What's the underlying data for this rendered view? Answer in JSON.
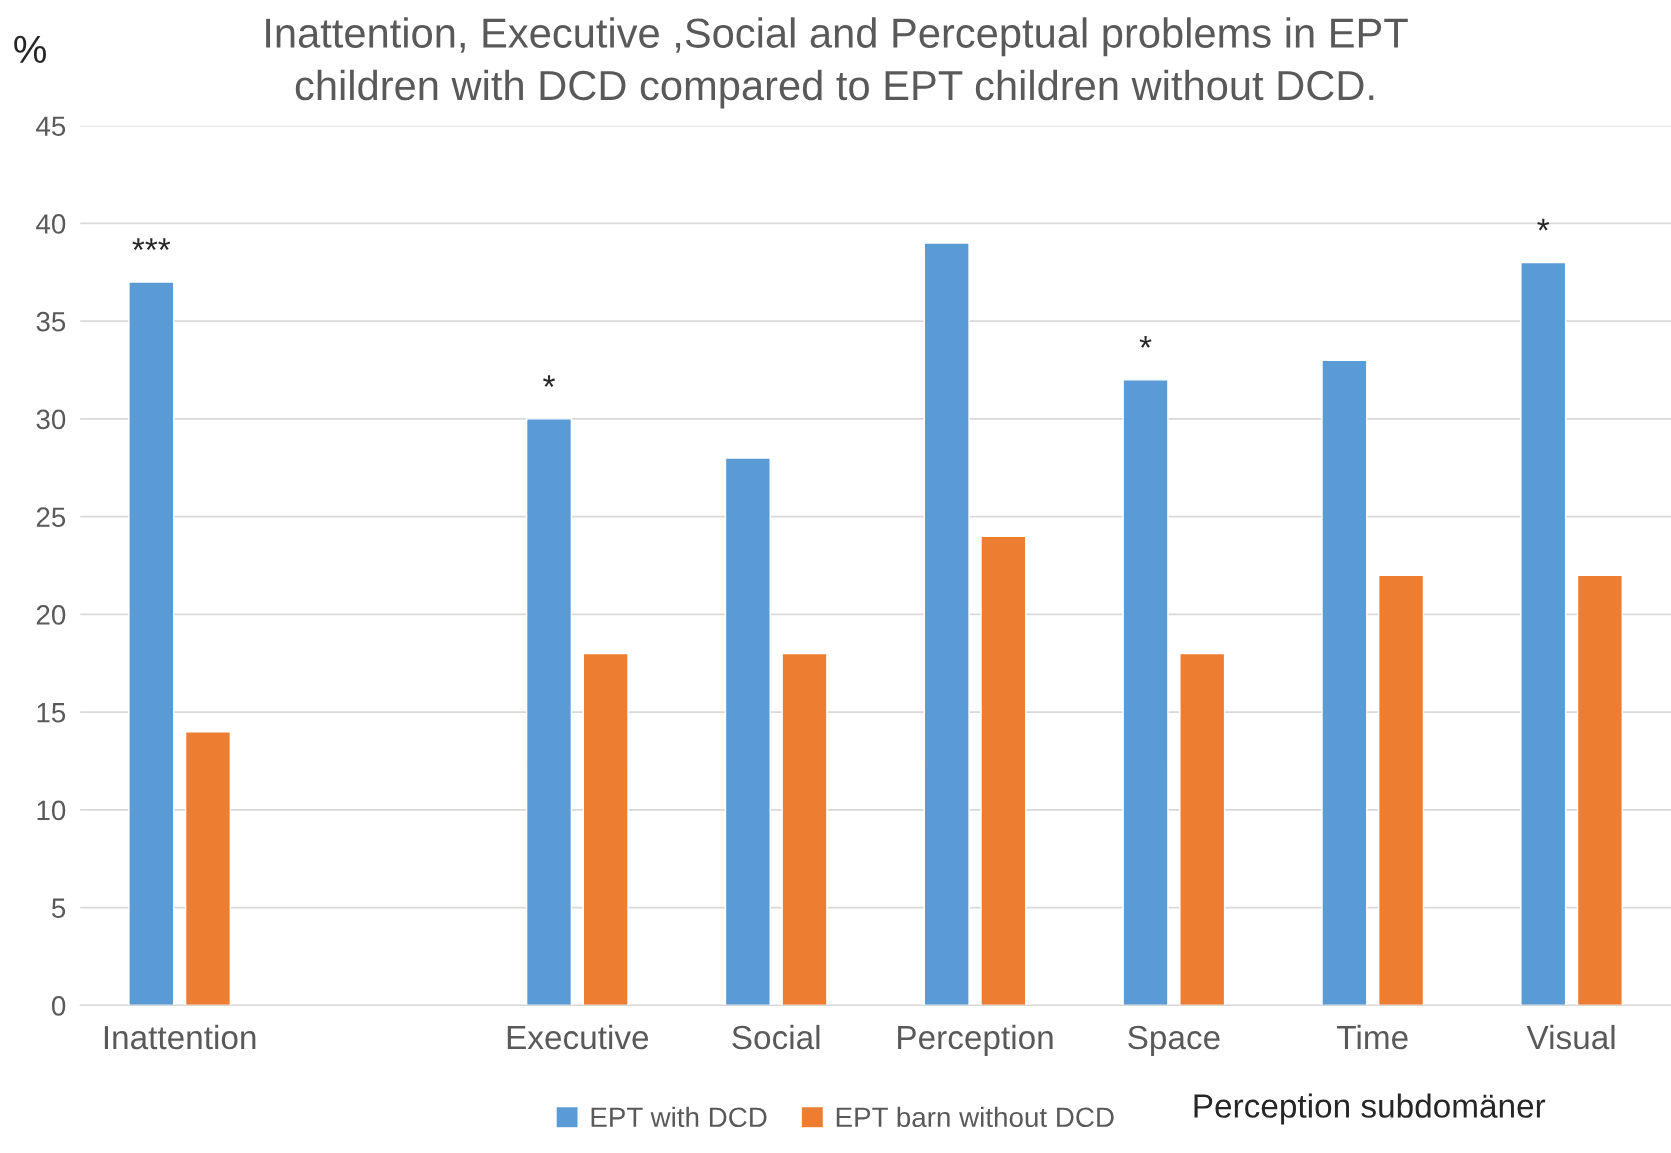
{
  "chart_data": {
    "type": "bar",
    "title": "Inattention, Executive ,Social and Perceptual problems in EPT\nchildren with DCD compared to EPT children without DCD.",
    "ylabel": "%",
    "xlabel": "Perception subdomäner",
    "categories": [
      "Inattention",
      null,
      "Executive",
      "Social",
      "Perception",
      "Space",
      "Time",
      "Visual"
    ],
    "series": [
      {
        "name": "EPT with DCD",
        "color": "#5b9bd5",
        "values": [
          37,
          null,
          30,
          28,
          39,
          32,
          33,
          38
        ],
        "value_labels": [
          "***",
          null,
          "*",
          null,
          null,
          "*",
          null,
          "*"
        ]
      },
      {
        "name": "EPT barn without DCD",
        "color": "#ed7d31",
        "values": [
          14,
          null,
          18,
          18,
          24,
          18,
          22,
          22
        ]
      }
    ],
    "ylim": [
      0,
      45
    ],
    "yticks": [
      0,
      5,
      10,
      15,
      20,
      25,
      30,
      35,
      40,
      45
    ],
    "grid": "y",
    "legend": "bottom"
  }
}
